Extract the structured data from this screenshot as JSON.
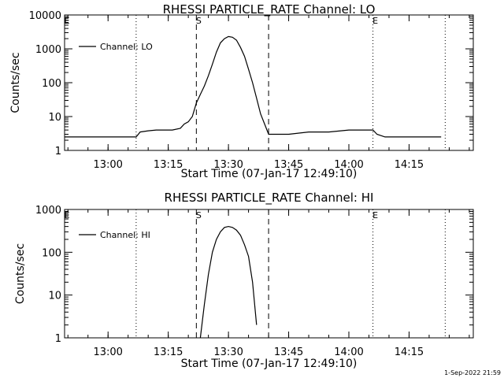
{
  "footer": {
    "timestamp": "1-Sep-2022 21:59"
  },
  "chart_data": [
    {
      "type": "line",
      "title": "RHESSI PARTICLE_RATE Channel: LO",
      "xlabel": "Start Time (07-Jan-17 12:49:10)",
      "ylabel": "Counts/sec",
      "yscale": "log",
      "ylim": [
        1,
        10000
      ],
      "ytick_labels": [
        "1",
        "10",
        "100",
        "1000",
        "10000"
      ],
      "xlim": [
        "12:49:10",
        "14:31:00"
      ],
      "xtick_labels": [
        "13:00",
        "13:15",
        "13:30",
        "13:45",
        "14:00",
        "14:15"
      ],
      "legend": {
        "label": "Channel: LO",
        "placement": "top-left"
      },
      "markers": [
        {
          "time": "12:49:10",
          "style": "dotted",
          "label": "E"
        },
        {
          "time": "13:07",
          "style": "dotted",
          "label": ""
        },
        {
          "time": "13:22",
          "style": "dashed",
          "label": "S"
        },
        {
          "time": "13:40",
          "style": "dashed",
          "label": ""
        },
        {
          "time": "14:06",
          "style": "dotted",
          "label": "E"
        },
        {
          "time": "14:24",
          "style": "dotted",
          "label": ""
        }
      ],
      "series": [
        {
          "name": "Channel: LO",
          "x": [
            "12:49:10",
            "12:51",
            "12:53",
            "12:55",
            "12:57",
            "12:59",
            "13:01",
            "13:03",
            "13:05",
            "13:07",
            "13:08",
            "13:10",
            "13:12",
            "13:14",
            "13:16",
            "13:18",
            "13:19",
            "13:20",
            "13:21",
            "13:22",
            "13:23",
            "13:24",
            "13:25",
            "13:26",
            "13:27",
            "13:28",
            "13:29",
            "13:30",
            "13:31",
            "13:32",
            "13:33",
            "13:34",
            "13:35",
            "13:36",
            "13:37",
            "13:38",
            "13:39",
            "13:40",
            "13:42",
            "13:45",
            "13:50",
            "13:55",
            "14:00",
            "14:03",
            "14:05",
            "14:06",
            "14:07",
            "14:09",
            "14:12",
            "14:15",
            "14:18",
            "14:21",
            "14:23"
          ],
          "y": [
            2.5,
            2.5,
            2.5,
            2.5,
            2.5,
            2.5,
            2.5,
            2.5,
            2.5,
            2.5,
            3.5,
            3.8,
            4,
            4,
            4,
            4.5,
            6,
            7,
            10,
            25,
            45,
            80,
            160,
            350,
            800,
            1500,
            2000,
            2300,
            2200,
            1800,
            1100,
            600,
            250,
            100,
            35,
            12,
            6,
            3,
            3,
            3,
            3.5,
            3.5,
            4,
            4,
            4,
            4,
            3,
            2.5,
            2.5,
            2.5,
            2.5,
            2.5,
            2.5
          ]
        }
      ]
    },
    {
      "type": "line",
      "title": "RHESSI PARTICLE_RATE Channel: HI",
      "xlabel": "Start Time (07-Jan-17 12:49:10)",
      "ylabel": "Counts/sec",
      "yscale": "log",
      "ylim": [
        1,
        1000
      ],
      "ytick_labels": [
        "1",
        "10",
        "100",
        "1000"
      ],
      "xlim": [
        "12:49:10",
        "14:31:00"
      ],
      "xtick_labels": [
        "13:00",
        "13:15",
        "13:30",
        "13:45",
        "14:00",
        "14:15"
      ],
      "legend": {
        "label": "Channel: HI",
        "placement": "top-left"
      },
      "markers": [
        {
          "time": "12:49:10",
          "style": "dotted",
          "label": "E"
        },
        {
          "time": "13:07",
          "style": "dotted",
          "label": ""
        },
        {
          "time": "13:22",
          "style": "dashed",
          "label": "S"
        },
        {
          "time": "13:40",
          "style": "dashed",
          "label": ""
        },
        {
          "time": "14:06",
          "style": "dotted",
          "label": "E"
        },
        {
          "time": "14:24",
          "style": "dotted",
          "label": ""
        }
      ],
      "series": [
        {
          "name": "Channel: HI",
          "x": [
            "13:23",
            "13:24",
            "13:25",
            "13:26",
            "13:27",
            "13:28",
            "13:29",
            "13:30",
            "13:31",
            "13:32",
            "13:33",
            "13:34",
            "13:35",
            "13:36",
            "13:37"
          ],
          "y": [
            1,
            6,
            30,
            100,
            200,
            300,
            380,
            400,
            380,
            330,
            250,
            150,
            80,
            20,
            2
          ]
        }
      ]
    }
  ]
}
